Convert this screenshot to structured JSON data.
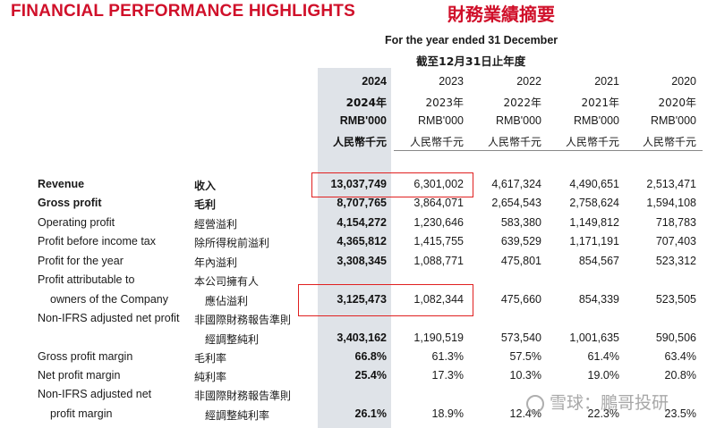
{
  "title_en": "FINANCIAL PERFORMANCE HIGHLIGHTS",
  "title_zh": "財務業績摘要",
  "period_en": "For the year ended 31 December",
  "period_zh": "截至12月31日止年度",
  "years": [
    {
      "year": "2024",
      "year_zh": "2024年",
      "unit_en": "RMB'000",
      "unit_zh": "人民幣千元"
    },
    {
      "year": "2023",
      "year_zh": "2023年",
      "unit_en": "RMB'000",
      "unit_zh": "人民幣千元"
    },
    {
      "year": "2022",
      "year_zh": "2022年",
      "unit_en": "RMB'000",
      "unit_zh": "人民幣千元"
    },
    {
      "year": "2021",
      "year_zh": "2021年",
      "unit_en": "RMB'000",
      "unit_zh": "人民幣千元"
    },
    {
      "year": "2020",
      "year_zh": "2020年",
      "unit_en": "RMB'000",
      "unit_zh": "人民幣千元"
    }
  ],
  "rows": [
    {
      "en": "Revenue",
      "zh": "收入",
      "values": [
        "13,037,749",
        "6,301,002",
        "4,617,324",
        "4,490,651",
        "2,513,471"
      ]
    },
    {
      "en": "Gross profit",
      "zh": "毛利",
      "values": [
        "8,707,765",
        "3,864,071",
        "2,654,543",
        "2,758,624",
        "1,594,108"
      ]
    },
    {
      "en": "Operating profit",
      "zh": "經營溢利",
      "values": [
        "4,154,272",
        "1,230,646",
        "583,380",
        "1,149,812",
        "718,783"
      ]
    },
    {
      "en": "Profit before income tax",
      "zh": "除所得稅前溢利",
      "values": [
        "4,365,812",
        "1,415,755",
        "639,529",
        "1,171,191",
        "707,403"
      ]
    },
    {
      "en": "Profit for the year",
      "zh": "年內溢利",
      "values": [
        "3,308,345",
        "1,088,771",
        "475,801",
        "854,567",
        "523,312"
      ]
    },
    {
      "en": "Profit attributable to",
      "zh": "本公司擁有人",
      "values": [
        "",
        "",
        "",
        "",
        ""
      ]
    },
    {
      "en": "owners of the Company",
      "zh": "應佔溢利",
      "values": [
        "3,125,473",
        "1,082,344",
        "475,660",
        "854,339",
        "523,505"
      ]
    },
    {
      "en": "Non-IFRS adjusted net profit",
      "zh": "非國際財務報告準則",
      "values": [
        "",
        "",
        "",
        "",
        ""
      ]
    },
    {
      "en": "",
      "zh": "經調整純利",
      "values": [
        "3,403,162",
        "1,190,519",
        "573,540",
        "1,001,635",
        "590,506"
      ]
    },
    {
      "en": "Gross profit margin",
      "zh": "毛利率",
      "values": [
        "66.8%",
        "61.3%",
        "57.5%",
        "61.4%",
        "63.4%"
      ]
    },
    {
      "en": "Net profit margin",
      "zh": "純利率",
      "values": [
        "25.4%",
        "17.3%",
        "10.3%",
        "19.0%",
        "20.8%"
      ]
    },
    {
      "en": "Non-IFRS adjusted net",
      "zh": "非國際財務報告準則",
      "values": [
        "",
        "",
        "",
        "",
        ""
      ]
    },
    {
      "en": "profit margin",
      "zh": "經調整純利率",
      "values": [
        "26.1%",
        "18.9%",
        "12.4%",
        "22.3%",
        "23.5%"
      ]
    }
  ],
  "watermark": "雪球：鵬哥投研"
}
